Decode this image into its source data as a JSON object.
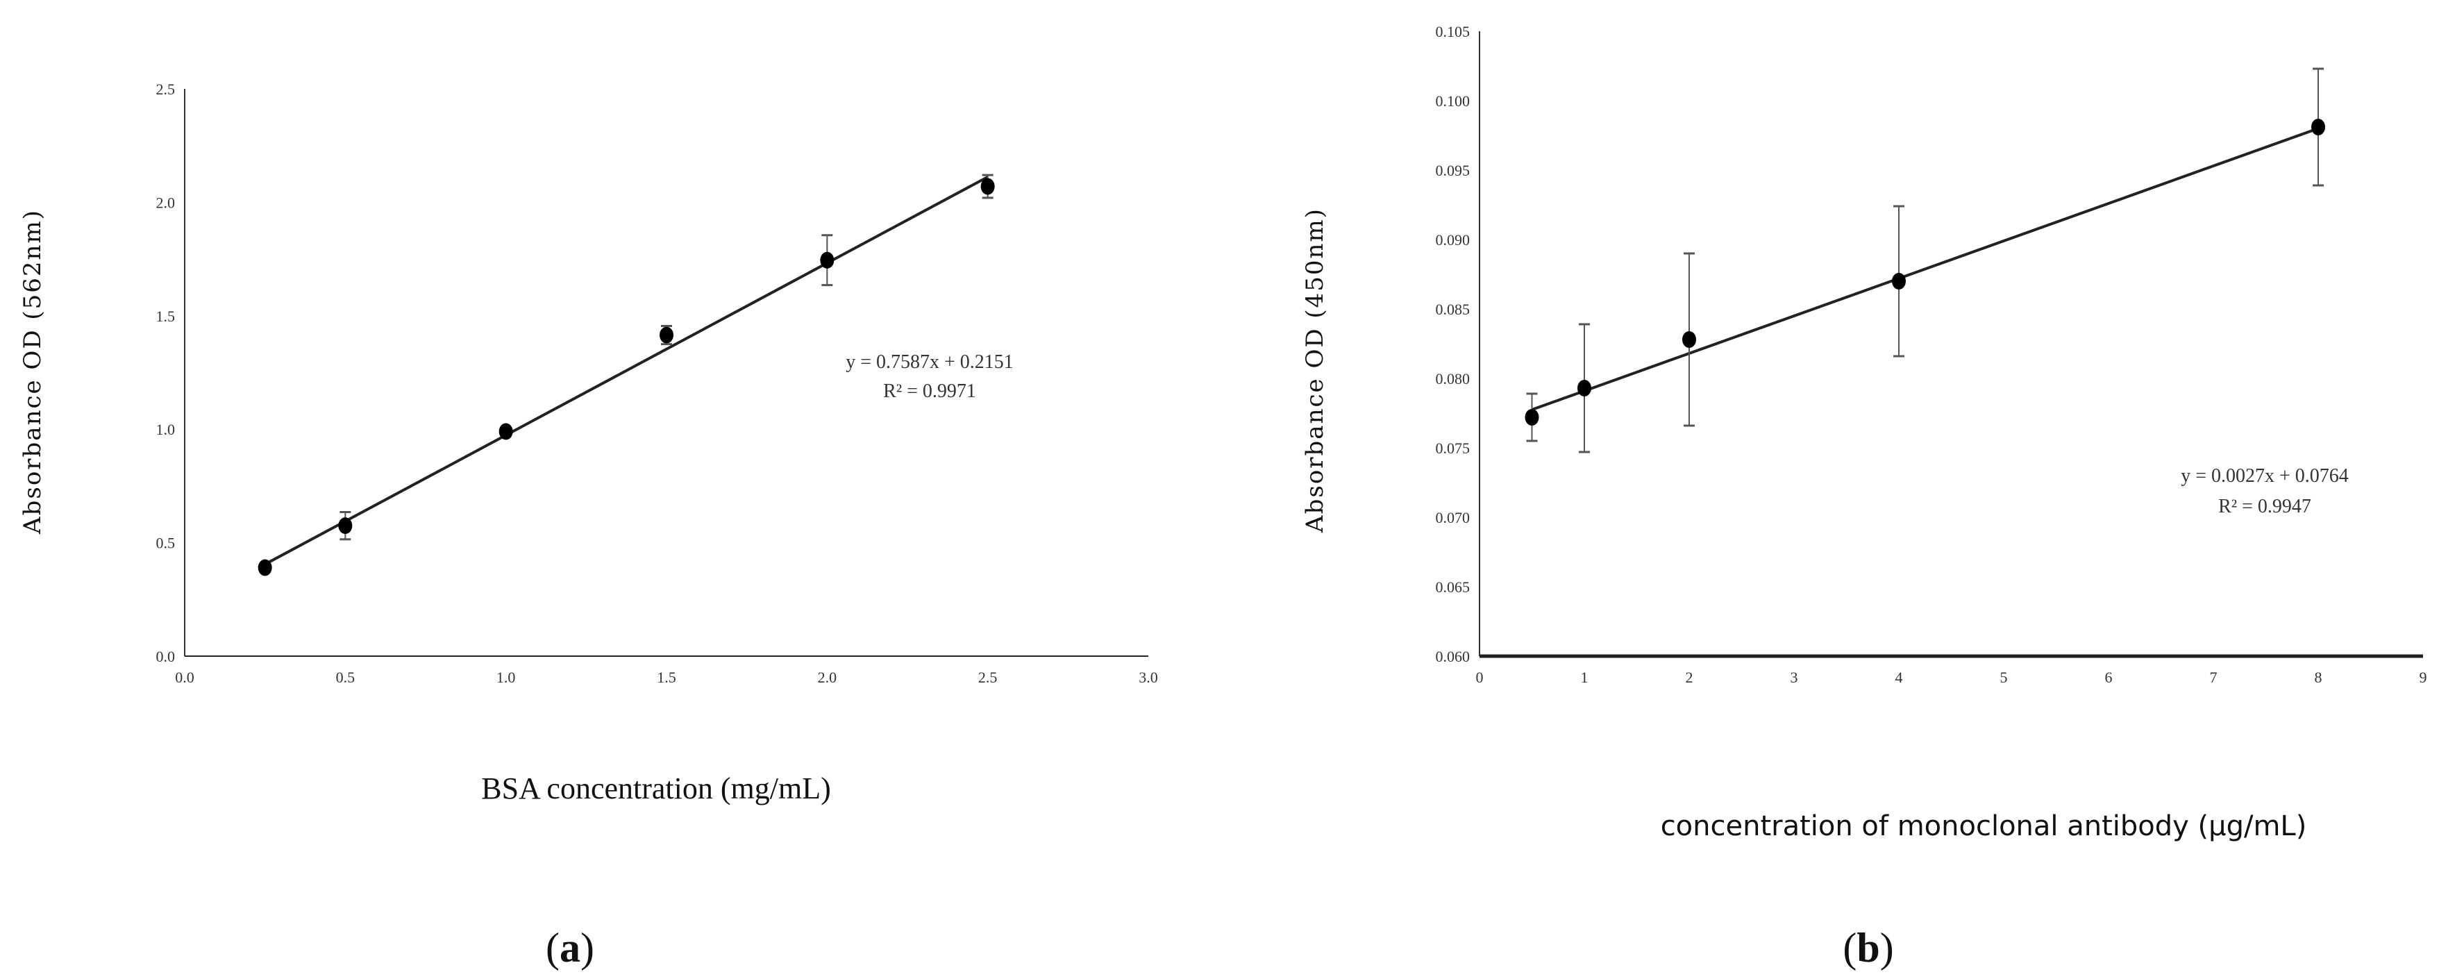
{
  "chart_data": [
    {
      "type": "scatter",
      "panel_label": "a",
      "xlabel": "BSA concentration (mg/mL)",
      "ylabel": "Absorbance  OD  (562nm)",
      "xlim": [
        0,
        3
      ],
      "ylim": [
        0,
        2.5
      ],
      "xticks": [
        "0.0",
        "0.5",
        "1.0",
        "1.5",
        "2.0",
        "2.5",
        "3.0"
      ],
      "yticks": [
        "0.0",
        "0.5",
        "1.0",
        "1.5",
        "2.0",
        "2.5"
      ],
      "grid": false,
      "x": [
        0.25,
        0.5,
        1.0,
        1.5,
        2.0,
        2.5
      ],
      "y": [
        0.39,
        0.575,
        0.99,
        1.415,
        1.745,
        2.07
      ],
      "error": [
        0.01,
        0.06,
        0.01,
        0.04,
        0.11,
        0.05
      ],
      "trendline": {
        "slope": 0.7587,
        "intercept": 0.2151,
        "x_range": [
          0.25,
          2.5
        ]
      },
      "equation": "y = 0.7587x + 0.2151",
      "r_squared": "R² = 0.9971"
    },
    {
      "type": "scatter",
      "panel_label": "b",
      "xlabel": "concentration of monoclonal antibody (μg/mL)",
      "ylabel": "Absorbance  OD  (450nm)",
      "xlim": [
        0,
        9
      ],
      "ylim": [
        0.06,
        0.105
      ],
      "xticks": [
        "0",
        "1",
        "2",
        "3",
        "4",
        "5",
        "6",
        "7",
        "8",
        "9"
      ],
      "yticks": [
        "0.060",
        "0.065",
        "0.070",
        "0.075",
        "0.080",
        "0.085",
        "0.090",
        "0.095",
        "0.100",
        "0.105"
      ],
      "grid": false,
      "x": [
        0.5,
        1,
        2,
        4,
        8
      ],
      "y": [
        0.0772,
        0.0793,
        0.0828,
        0.087,
        0.0981
      ],
      "error": [
        0.0017,
        0.0046,
        0.0062,
        0.0054,
        0.0042
      ],
      "trendline": {
        "slope": 0.0027,
        "intercept": 0.0764,
        "x_range": [
          0.5,
          8
        ]
      },
      "equation": "y = 0.0027x + 0.0764",
      "r_squared": "R² = 0.9947"
    }
  ],
  "colors": {
    "marker": "#000000",
    "line": "#222222",
    "error_bar": "#555555"
  }
}
